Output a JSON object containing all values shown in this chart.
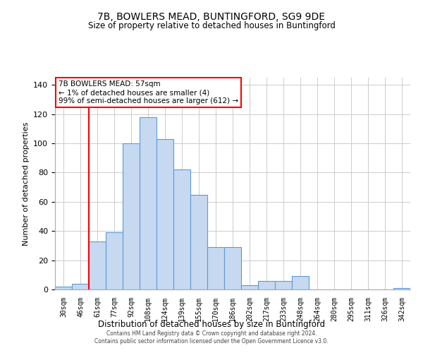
{
  "title": "7B, BOWLERS MEAD, BUNTINGFORD, SG9 9DE",
  "subtitle": "Size of property relative to detached houses in Buntingford",
  "xlabel": "Distribution of detached houses by size in Buntingford",
  "ylabel": "Number of detached properties",
  "bar_labels": [
    "30sqm",
    "46sqm",
    "61sqm",
    "77sqm",
    "92sqm",
    "108sqm",
    "124sqm",
    "139sqm",
    "155sqm",
    "170sqm",
    "186sqm",
    "202sqm",
    "217sqm",
    "233sqm",
    "248sqm",
    "264sqm",
    "280sqm",
    "295sqm",
    "311sqm",
    "326sqm",
    "342sqm"
  ],
  "bar_values": [
    2,
    4,
    33,
    39,
    100,
    118,
    103,
    82,
    65,
    29,
    29,
    3,
    6,
    6,
    9,
    0,
    0,
    0,
    0,
    0,
    1
  ],
  "bar_color": "#c6d9f0",
  "bar_edge_color": "#5b9bd5",
  "ylim": [
    0,
    145
  ],
  "yticks": [
    0,
    20,
    40,
    60,
    80,
    100,
    120,
    140
  ],
  "annotation_title": "7B BOWLERS MEAD: 57sqm",
  "annotation_line1": "← 1% of detached houses are smaller (4)",
  "annotation_line2": "99% of semi-detached houses are larger (612) →",
  "red_line_x": 1.5,
  "footnote1": "Contains HM Land Registry data © Crown copyright and database right 2024.",
  "footnote2": "Contains public sector information licensed under the Open Government Licence v3.0.",
  "background_color": "#ffffff",
  "grid_color": "#cccccc"
}
